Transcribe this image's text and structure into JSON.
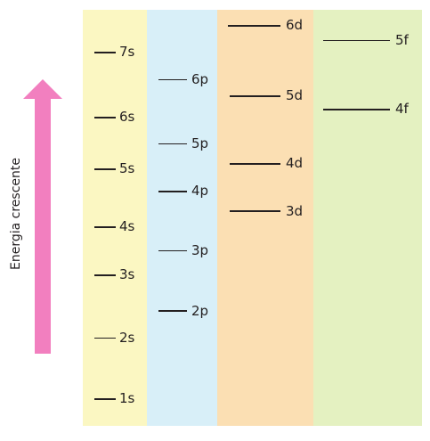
{
  "axis": {
    "label": "Energia crescente"
  },
  "colors": {
    "column_s": "#fbf7c2",
    "column_p": "#d8eff8",
    "column_d": "#fbdfb3",
    "column_f": "#e4f1c1",
    "arrow": "#f27fbf"
  },
  "sublevels": {
    "s": [
      "1s",
      "2s",
      "3s",
      "4s",
      "5s",
      "6s",
      "7s"
    ],
    "p": [
      "2p",
      "3p",
      "4p",
      "5p",
      "6p"
    ],
    "d": [
      "3d",
      "4d",
      "5d",
      "6d"
    ],
    "f": [
      "4f",
      "5f"
    ]
  }
}
